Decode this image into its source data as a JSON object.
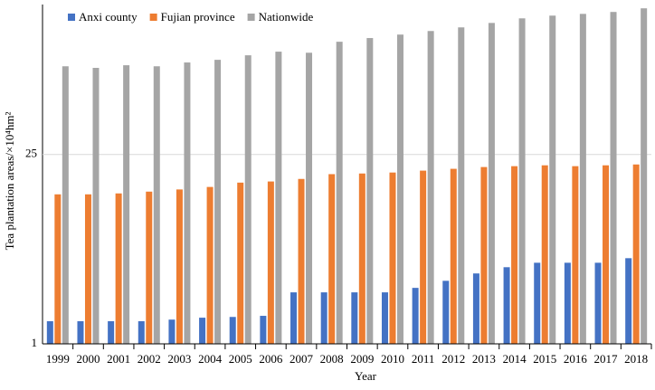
{
  "chart_data": {
    "type": "bar",
    "x_label": "Year",
    "y_label": "Tea plantation areas/×10⁴hm²",
    "categories": [
      "1999",
      "2000",
      "2001",
      "2002",
      "2003",
      "2004",
      "2005",
      "2006",
      "2007",
      "2008",
      "2009",
      "2010",
      "2011",
      "2012",
      "2013",
      "2014",
      "2015",
      "2016",
      "2017",
      "2018"
    ],
    "series": [
      {
        "name": "Anxi county",
        "color": "#4472c4",
        "values": [
          1.47,
          1.47,
          1.47,
          1.47,
          1.51,
          1.56,
          1.58,
          1.61,
          2.4,
          2.4,
          2.4,
          2.4,
          2.59,
          2.92,
          3.31,
          3.68,
          3.97,
          3.97,
          3.97,
          4.29
        ]
      },
      {
        "name": "Fujian province",
        "color": "#ed7d31",
        "values": [
          12.7,
          12.7,
          12.9,
          13.3,
          13.8,
          14.4,
          15.5,
          15.8,
          16.5,
          17.9,
          18.1,
          18.4,
          19.0,
          19.6,
          20.2,
          20.5,
          20.8,
          20.5,
          20.8,
          21.1
        ]
      },
      {
        "name": "Nationwide",
        "color": "#a5a5a5",
        "values": [
          112,
          109,
          114,
          112,
          119.5,
          125,
          135,
          143.6,
          141,
          170,
          181,
          192,
          204,
          217,
          234,
          253,
          265,
          273,
          282,
          300
        ]
      }
    ],
    "ylim": [
      1,
      320
    ],
    "yticks": [
      1,
      25
    ],
    "log_y": true,
    "grid": true,
    "legend": "top-left"
  }
}
